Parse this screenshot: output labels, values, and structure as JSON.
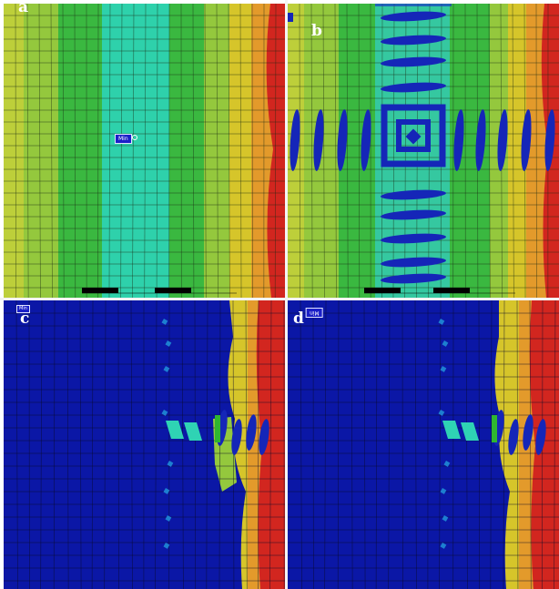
{
  "panels": {
    "a": {
      "label": "a",
      "min_tag": "Min"
    },
    "b": {
      "label": "b"
    },
    "c": {
      "label": "c",
      "min_tag": "Min"
    },
    "d": {
      "label": "d",
      "min_tag": "Min"
    }
  },
  "colors": {
    "deep_blue": "#0b17a6",
    "cyan": "#2fd3b4",
    "light_green": "#48c65a",
    "green": "#2fb630",
    "yellow_green": "#a9d23d",
    "yellow": "#d6c52a",
    "orange": "#e19d2a",
    "red": "#d2261f"
  }
}
